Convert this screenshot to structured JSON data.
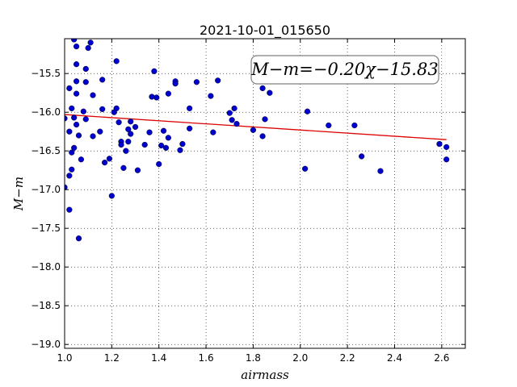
{
  "chart_data": {
    "type": "scatter",
    "title": "2021-10-01_015650",
    "xlabel": "airmass",
    "ylabel": "M−m",
    "xlim": [
      1.0,
      2.7
    ],
    "ylim": [
      -19.05,
      -15.05
    ],
    "y_inverted": false,
    "grid": true,
    "grid_style": "dotted",
    "x_ticks": [
      1.0,
      1.2,
      1.4,
      1.6,
      1.8,
      2.0,
      2.2,
      2.4,
      2.6
    ],
    "x_tick_labels": [
      "1.0",
      "1.2",
      "1.4",
      "1.6",
      "1.8",
      "2.0",
      "2.2",
      "2.4",
      "2.6"
    ],
    "y_ticks": [
      -15.5,
      -16.0,
      -16.5,
      -17.0,
      -17.5,
      -18.0,
      -18.5,
      -19.0
    ],
    "y_tick_labels": [
      "−15.5",
      "−16.0",
      "−16.5",
      "−17.0",
      "−17.5",
      "−18.0",
      "−18.5",
      "−19.0"
    ],
    "annotation": "M−m=−0.20χ−15.83",
    "point_color": "#0000cc",
    "fit_color": "#dd0000",
    "fit": {
      "slope": -0.2,
      "intercept": -15.83,
      "x_range": [
        1.0,
        2.62
      ]
    },
    "points": [
      {
        "x": 1.0,
        "y": -16.08
      },
      {
        "x": 1.0,
        "y": -16.97
      },
      {
        "x": 1.02,
        "y": -15.69
      },
      {
        "x": 1.02,
        "y": -16.25
      },
      {
        "x": 1.02,
        "y": -16.82
      },
      {
        "x": 1.02,
        "y": -17.26
      },
      {
        "x": 1.03,
        "y": -15.95
      },
      {
        "x": 1.03,
        "y": -16.52
      },
      {
        "x": 1.03,
        "y": -16.74
      },
      {
        "x": 1.04,
        "y": -15.06
      },
      {
        "x": 1.04,
        "y": -16.07
      },
      {
        "x": 1.04,
        "y": -16.46
      },
      {
        "x": 1.05,
        "y": -15.15
      },
      {
        "x": 1.05,
        "y": -15.38
      },
      {
        "x": 1.05,
        "y": -15.6
      },
      {
        "x": 1.05,
        "y": -15.76
      },
      {
        "x": 1.05,
        "y": -16.16
      },
      {
        "x": 1.06,
        "y": -16.3
      },
      {
        "x": 1.06,
        "y": -17.63
      },
      {
        "x": 1.07,
        "y": -16.61
      },
      {
        "x": 1.08,
        "y": -15.99
      },
      {
        "x": 1.09,
        "y": -15.44
      },
      {
        "x": 1.09,
        "y": -15.61
      },
      {
        "x": 1.09,
        "y": -16.09
      },
      {
        "x": 1.1,
        "y": -15.17
      },
      {
        "x": 1.11,
        "y": -15.1
      },
      {
        "x": 1.12,
        "y": -15.78
      },
      {
        "x": 1.12,
        "y": -16.31
      },
      {
        "x": 1.15,
        "y": -16.25
      },
      {
        "x": 1.16,
        "y": -15.58
      },
      {
        "x": 1.16,
        "y": -15.96
      },
      {
        "x": 1.17,
        "y": -16.65
      },
      {
        "x": 1.19,
        "y": -16.6
      },
      {
        "x": 1.2,
        "y": -17.08
      },
      {
        "x": 1.21,
        "y": -16.0
      },
      {
        "x": 1.22,
        "y": -15.34
      },
      {
        "x": 1.22,
        "y": -15.95
      },
      {
        "x": 1.23,
        "y": -16.13
      },
      {
        "x": 1.24,
        "y": -16.38
      },
      {
        "x": 1.24,
        "y": -16.42
      },
      {
        "x": 1.25,
        "y": -16.72
      },
      {
        "x": 1.26,
        "y": -16.5
      },
      {
        "x": 1.27,
        "y": -16.22
      },
      {
        "x": 1.27,
        "y": -16.38
      },
      {
        "x": 1.28,
        "y": -16.12
      },
      {
        "x": 1.28,
        "y": -16.28
      },
      {
        "x": 1.3,
        "y": -16.19
      },
      {
        "x": 1.31,
        "y": -16.75
      },
      {
        "x": 1.34,
        "y": -16.42
      },
      {
        "x": 1.36,
        "y": -16.26
      },
      {
        "x": 1.37,
        "y": -15.8
      },
      {
        "x": 1.38,
        "y": -15.47
      },
      {
        "x": 1.39,
        "y": -15.81
      },
      {
        "x": 1.4,
        "y": -16.67
      },
      {
        "x": 1.41,
        "y": -16.43
      },
      {
        "x": 1.42,
        "y": -16.24
      },
      {
        "x": 1.43,
        "y": -16.46
      },
      {
        "x": 1.44,
        "y": -15.76
      },
      {
        "x": 1.44,
        "y": -16.33
      },
      {
        "x": 1.47,
        "y": -15.6
      },
      {
        "x": 1.47,
        "y": -15.63
      },
      {
        "x": 1.49,
        "y": -16.49
      },
      {
        "x": 1.5,
        "y": -16.41
      },
      {
        "x": 1.53,
        "y": -15.95
      },
      {
        "x": 1.53,
        "y": -16.21
      },
      {
        "x": 1.56,
        "y": -15.61
      },
      {
        "x": 1.62,
        "y": -15.79
      },
      {
        "x": 1.63,
        "y": -16.26
      },
      {
        "x": 1.65,
        "y": -15.59
      },
      {
        "x": 1.7,
        "y": -16.01
      },
      {
        "x": 1.71,
        "y": -16.1
      },
      {
        "x": 1.72,
        "y": -15.95
      },
      {
        "x": 1.73,
        "y": -16.15
      },
      {
        "x": 1.8,
        "y": -16.23
      },
      {
        "x": 1.84,
        "y": -15.69
      },
      {
        "x": 1.84,
        "y": -16.31
      },
      {
        "x": 1.85,
        "y": -16.09
      },
      {
        "x": 1.87,
        "y": -15.75
      },
      {
        "x": 2.02,
        "y": -16.73
      },
      {
        "x": 2.03,
        "y": -15.99
      },
      {
        "x": 2.12,
        "y": -16.17
      },
      {
        "x": 2.23,
        "y": -16.17
      },
      {
        "x": 2.26,
        "y": -16.57
      },
      {
        "x": 2.34,
        "y": -16.76
      },
      {
        "x": 2.59,
        "y": -16.41
      },
      {
        "x": 2.62,
        "y": -16.45
      },
      {
        "x": 2.62,
        "y": -16.61
      }
    ]
  }
}
